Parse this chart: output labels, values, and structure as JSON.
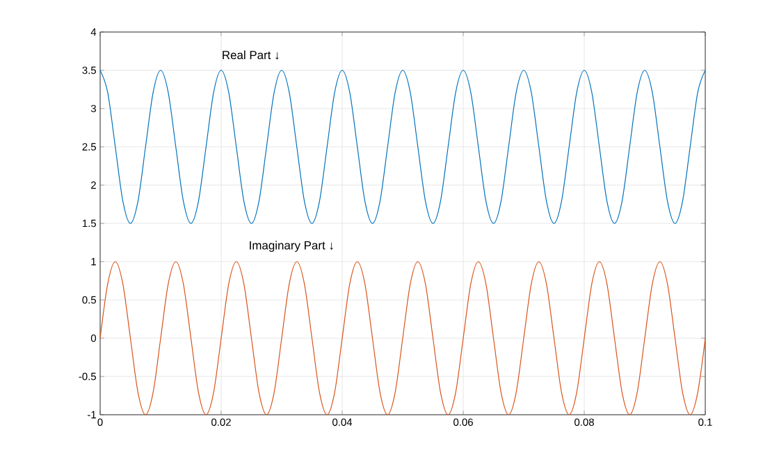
{
  "chart_data": {
    "type": "line",
    "x": [
      0,
      0.00125,
      0.0025,
      0.00375,
      0.005,
      0.00625,
      0.0075,
      0.00875,
      0.01,
      0.01125,
      0.0125,
      0.01375,
      0.015,
      0.01625,
      0.0175,
      0.01875,
      0.02,
      0.02125,
      0.0225,
      0.02375,
      0.025,
      0.02625,
      0.0275,
      0.02875,
      0.03,
      0.03125,
      0.0325,
      0.03375,
      0.035,
      0.03625,
      0.0375,
      0.03875,
      0.04,
      0.04125,
      0.0425,
      0.04375,
      0.045,
      0.04625,
      0.0475,
      0.04875,
      0.05,
      0.05125,
      0.0525,
      0.05375,
      0.055,
      0.05625,
      0.0575,
      0.05875,
      0.06,
      0.06125,
      0.0625,
      0.06375,
      0.065,
      0.06625,
      0.0675,
      0.06875,
      0.07,
      0.07125,
      0.0725,
      0.07375,
      0.075,
      0.07625,
      0.0775,
      0.07875,
      0.08,
      0.08125,
      0.0825,
      0.08375,
      0.085,
      0.08625,
      0.0875,
      0.08875,
      0.09,
      0.09125,
      0.0925,
      0.09375,
      0.095,
      0.09625,
      0.0975,
      0.09875,
      0.1
    ],
    "series": [
      {
        "color": "#0072bd",
        "values": [
          3.5,
          3.21,
          2.5,
          1.79,
          1.5,
          1.79,
          2.5,
          3.21,
          3.5,
          3.21,
          2.5,
          1.79,
          1.5,
          1.79,
          2.5,
          3.21,
          3.5,
          3.21,
          2.5,
          1.79,
          1.5,
          1.79,
          2.5,
          3.21,
          3.5,
          3.21,
          2.5,
          1.79,
          1.5,
          1.79,
          2.5,
          3.21,
          3.5,
          3.21,
          2.5,
          1.79,
          1.5,
          1.79,
          2.5,
          3.21,
          3.5,
          3.21,
          2.5,
          1.79,
          1.5,
          1.79,
          2.5,
          3.21,
          3.5,
          3.21,
          2.5,
          1.79,
          1.5,
          1.79,
          2.5,
          3.21,
          3.5,
          3.21,
          2.5,
          1.79,
          1.5,
          1.79,
          2.5,
          3.21,
          3.5,
          3.21,
          2.5,
          1.79,
          1.5,
          1.79,
          2.5,
          3.21,
          3.5,
          3.21,
          2.5,
          1.79,
          1.5,
          1.79,
          2.5,
          3.21,
          3.5
        ]
      },
      {
        "color": "#d95319",
        "values": [
          0,
          0.71,
          1,
          0.71,
          0,
          -0.71,
          -1,
          -0.71,
          0,
          0.71,
          1,
          0.71,
          0,
          -0.71,
          -1,
          -0.71,
          0,
          0.71,
          1,
          0.71,
          0,
          -0.71,
          -1,
          -0.71,
          0,
          0.71,
          1,
          0.71,
          0,
          -0.71,
          -1,
          -0.71,
          0,
          0.71,
          1,
          0.71,
          0,
          -0.71,
          -1,
          -0.71,
          0,
          0.71,
          1,
          0.71,
          0,
          -0.71,
          -1,
          -0.71,
          0,
          0.71,
          1,
          0.71,
          0,
          -0.71,
          -1,
          -0.71,
          0,
          0.71,
          1,
          0.71,
          0,
          -0.71,
          -1,
          -0.71,
          0,
          0.71,
          1,
          0.71,
          0,
          -0.71,
          -1,
          -0.71,
          0,
          0.71,
          1,
          0.71,
          0,
          -0.71,
          -1,
          -0.71,
          0
        ]
      }
    ],
    "xlim": [
      0,
      0.1
    ],
    "ylim": [
      -1,
      4
    ],
    "xticks": [
      0,
      0.02,
      0.04,
      0.06,
      0.08,
      0.1
    ],
    "yticks": [
      -1,
      -0.5,
      0,
      0.5,
      1,
      1.5,
      2,
      2.5,
      3,
      3.5,
      4
    ],
    "grid": true,
    "annotations": [
      "Real Part ↓",
      "Imaginary Part ↓"
    ]
  }
}
